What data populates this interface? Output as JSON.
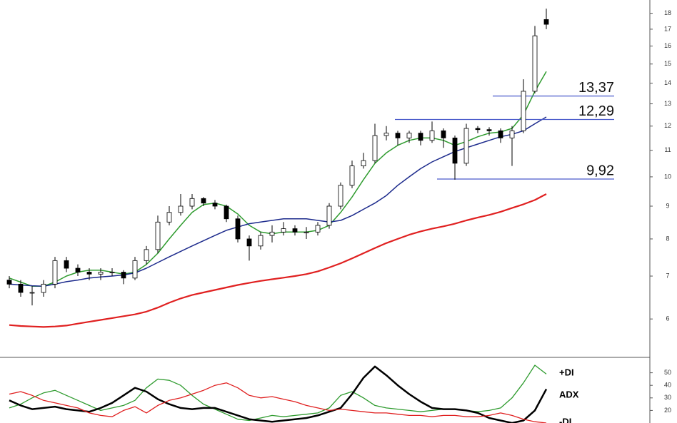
{
  "chart_data": [
    {
      "type": "candlestick",
      "open": [
        6.9,
        6.8,
        6.6,
        6.6,
        6.8,
        7.4,
        7.2,
        7.1,
        7.05,
        7.1,
        7.1,
        6.95,
        7.4,
        7.7,
        8.5,
        8.8,
        9.0,
        9.25,
        9.1,
        9.0,
        8.6,
        8.0,
        7.8,
        8.1,
        8.2,
        8.3,
        8.2,
        8.2,
        8.4,
        9.0,
        9.7,
        10.4,
        10.6,
        11.6,
        11.7,
        11.5,
        11.7,
        11.4,
        11.8,
        11.5,
        10.5,
        11.9,
        11.85,
        11.8,
        11.5,
        11.8,
        13.6,
        17.6
      ],
      "high": [
        7.0,
        6.9,
        6.75,
        6.9,
        7.5,
        7.5,
        7.3,
        7.2,
        7.2,
        7.2,
        7.15,
        7.5,
        7.8,
        8.7,
        9.0,
        9.4,
        9.4,
        9.3,
        9.2,
        9.05,
        8.7,
        8.1,
        8.2,
        8.4,
        8.5,
        8.4,
        8.35,
        8.5,
        9.1,
        9.8,
        10.6,
        10.9,
        12.1,
        12.0,
        11.8,
        11.8,
        11.8,
        12.2,
        11.9,
        11.6,
        12.1,
        12.0,
        11.95,
        11.9,
        12.0,
        14.2,
        17.2,
        18.3
      ],
      "low": [
        6.7,
        6.5,
        6.3,
        6.5,
        6.7,
        7.1,
        7.0,
        6.9,
        6.9,
        7.0,
        6.8,
        6.9,
        7.3,
        7.6,
        8.4,
        8.7,
        8.9,
        9.0,
        8.9,
        8.5,
        7.9,
        7.4,
        7.7,
        7.9,
        8.1,
        8.1,
        8.0,
        8.1,
        8.3,
        8.9,
        9.6,
        10.3,
        10.5,
        11.4,
        11.2,
        11.3,
        11.2,
        11.3,
        11.1,
        9.9,
        10.4,
        11.7,
        11.6,
        11.3,
        10.4,
        11.7,
        13.5,
        17.0
      ],
      "close": [
        6.8,
        6.6,
        6.6,
        6.8,
        7.4,
        7.2,
        7.1,
        7.05,
        7.1,
        7.1,
        6.95,
        7.4,
        7.7,
        8.5,
        8.8,
        9.0,
        9.25,
        9.1,
        9.0,
        8.6,
        8.0,
        7.8,
        8.1,
        8.2,
        8.3,
        8.2,
        8.2,
        8.4,
        9.0,
        9.7,
        10.4,
        10.6,
        11.6,
        11.7,
        11.5,
        11.7,
        11.4,
        11.8,
        11.5,
        10.5,
        11.9,
        11.85,
        11.8,
        11.5,
        11.8,
        13.6,
        16.6,
        17.3
      ],
      "series": [
        {
          "color": "#2e9b2e",
          "values": [
            6.95,
            6.85,
            6.75,
            6.75,
            6.85,
            7.0,
            7.1,
            7.15,
            7.15,
            7.1,
            7.05,
            7.1,
            7.3,
            7.6,
            8.0,
            8.4,
            8.8,
            9.05,
            9.1,
            9.0,
            8.75,
            8.4,
            8.2,
            8.15,
            8.2,
            8.2,
            8.2,
            8.25,
            8.4,
            8.8,
            9.3,
            9.9,
            10.5,
            10.9,
            11.2,
            11.4,
            11.5,
            11.5,
            11.4,
            11.2,
            11.35,
            11.55,
            11.7,
            11.75,
            11.9,
            12.5,
            13.6,
            14.6
          ]
        },
        {
          "color": "#1c2a8c",
          "values": [
            6.8,
            6.78,
            6.76,
            6.75,
            6.8,
            6.86,
            6.9,
            6.95,
            6.98,
            7.0,
            7.03,
            7.08,
            7.2,
            7.35,
            7.5,
            7.65,
            7.8,
            7.95,
            8.1,
            8.25,
            8.35,
            8.45,
            8.5,
            8.55,
            8.6,
            8.6,
            8.6,
            8.55,
            8.5,
            8.55,
            8.7,
            8.9,
            9.1,
            9.35,
            9.7,
            10.0,
            10.3,
            10.55,
            10.75,
            10.95,
            11.1,
            11.25,
            11.4,
            11.55,
            11.65,
            11.8,
            12.1,
            12.4
          ]
        },
        {
          "color": "#e02020",
          "values": [
            5.87,
            5.85,
            5.84,
            5.83,
            5.84,
            5.86,
            5.9,
            5.94,
            5.98,
            6.02,
            6.06,
            6.1,
            6.16,
            6.25,
            6.36,
            6.46,
            6.54,
            6.6,
            6.66,
            6.72,
            6.78,
            6.83,
            6.88,
            6.92,
            6.96,
            7.0,
            7.05,
            7.12,
            7.22,
            7.33,
            7.46,
            7.6,
            7.74,
            7.88,
            8.0,
            8.12,
            8.22,
            8.3,
            8.37,
            8.45,
            8.55,
            8.64,
            8.72,
            8.82,
            8.94,
            9.06,
            9.2,
            9.4
          ]
        }
      ],
      "levels": [
        {
          "value": 13.37,
          "label": "13,37"
        },
        {
          "value": 12.29,
          "label": "12,29"
        },
        {
          "value": 9.92,
          "label": "9,92"
        }
      ],
      "level_color": "#4a5acb",
      "ylim": [
        5.24,
        18.88
      ],
      "yticks": [
        6,
        7,
        8,
        9,
        10,
        11,
        12,
        13,
        14,
        15,
        16,
        17,
        18
      ],
      "log_scale": true
    },
    {
      "type": "line",
      "series": [
        {
          "name": "+DI",
          "color": "#2e9b2e",
          "values": [
            22,
            25,
            30,
            34,
            36,
            32,
            28,
            24,
            20,
            22,
            24,
            28,
            38,
            45,
            44,
            40,
            32,
            25,
            21,
            17,
            13,
            12,
            14,
            16,
            15,
            16,
            17,
            18,
            22,
            32,
            35,
            30,
            24,
            22,
            21,
            20,
            19,
            20,
            21,
            21,
            20,
            19,
            20,
            22,
            30,
            42,
            56,
            49
          ]
        },
        {
          "name": "ADX",
          "color": "#000000",
          "values": [
            28,
            24,
            21,
            22,
            23,
            21,
            20,
            19,
            22,
            26,
            32,
            38,
            35,
            29,
            25,
            22,
            21,
            22,
            22,
            19,
            16,
            13,
            12,
            11,
            12,
            13,
            14,
            16,
            19,
            22,
            33,
            46,
            55,
            48,
            40,
            33,
            27,
            22,
            21,
            21,
            20,
            18,
            14,
            12,
            10,
            12,
            20,
            37
          ]
        },
        {
          "name": "-DI",
          "color": "#e02020",
          "values": [
            33,
            35,
            32,
            28,
            26,
            24,
            22,
            18,
            16,
            15,
            20,
            23,
            18,
            24,
            28,
            30,
            33,
            36,
            40,
            42,
            38,
            32,
            30,
            31,
            29,
            27,
            24,
            22,
            20,
            21,
            20,
            19,
            18,
            18,
            17,
            16,
            16,
            15,
            16,
            16,
            15,
            15,
            16,
            18,
            16,
            13,
            11,
            10
          ]
        }
      ],
      "ylim": [
        10,
        60
      ],
      "yticks": [
        20,
        30,
        40,
        50
      ]
    }
  ]
}
